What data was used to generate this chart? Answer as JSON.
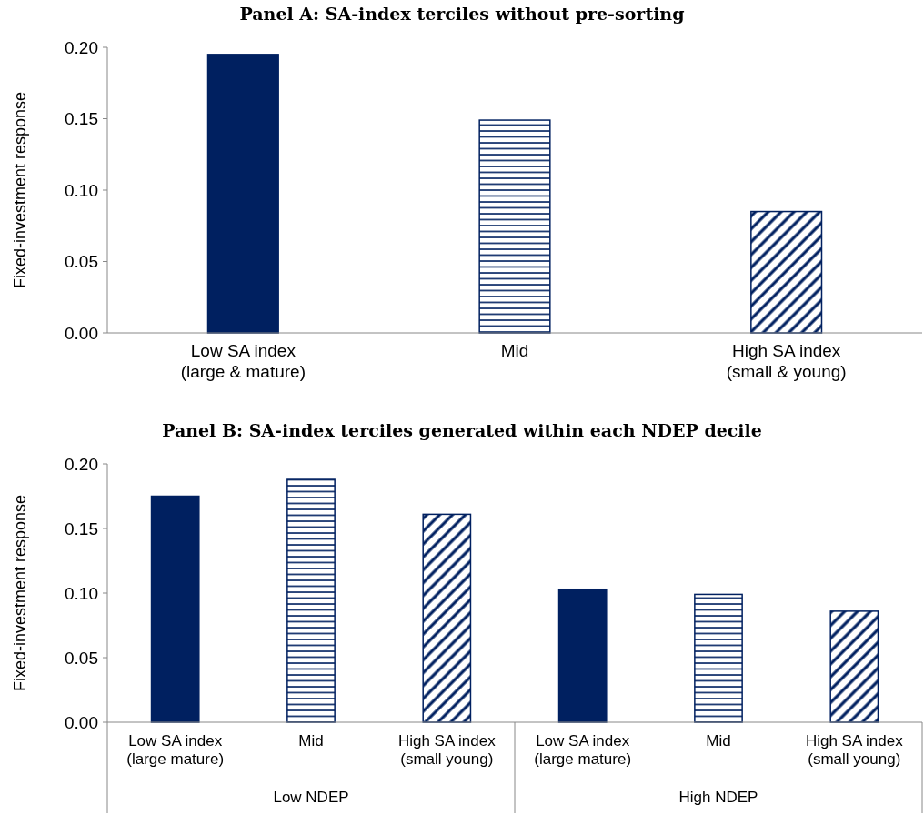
{
  "chart_data": [
    {
      "type": "bar",
      "title": "Panel A: SA-index terciles without pre-sorting",
      "ylabel": "Fixed-investment response",
      "categories": [
        "Low SA index\n(large & mature)",
        "Mid",
        "High SA index\n(small & young)"
      ],
      "values": [
        0.195,
        0.149,
        0.085
      ],
      "colors": [
        "#002060",
        "#002060",
        "#002060"
      ],
      "ylim": [
        0,
        0.2
      ],
      "yticks": [
        {
          "value": 0,
          "label": "0.00"
        },
        {
          "value": 0.05,
          "label": "0.05"
        },
        {
          "value": 0.1,
          "label": "0.10"
        },
        {
          "value": 0.15,
          "label": "0.15"
        },
        {
          "value": 0.2,
          "label": "0.20"
        }
      ],
      "grid": false
    },
    {
      "type": "bar",
      "title": "Panel B: SA-index terciles generated within each NDEP decile",
      "ylabel": "Fixed-investment response",
      "categories": [
        "Low SA index\n(large mature)",
        "Mid",
        "High SA index\n(small young)",
        "Low SA index\n(large mature)",
        "Mid",
        "High SA index\n(small young)"
      ],
      "values": [
        0.175,
        0.188,
        0.161,
        0.103,
        0.099,
        0.086
      ],
      "colors": [
        "#002060",
        "#002060",
        "#002060",
        "#002060",
        "#002060",
        "#002060"
      ],
      "ylim": [
        0,
        0.2
      ],
      "yticks": [
        {
          "value": 0,
          "label": "0.00"
        },
        {
          "value": 0.05,
          "label": "0.05"
        },
        {
          "value": 0.1,
          "label": "0.10"
        },
        {
          "value": 0.15,
          "label": "0.15"
        },
        {
          "value": 0.2,
          "label": "0.20"
        }
      ],
      "annotations": [
        "Low NDEP",
        "High NDEP"
      ],
      "grid": false
    }
  ]
}
